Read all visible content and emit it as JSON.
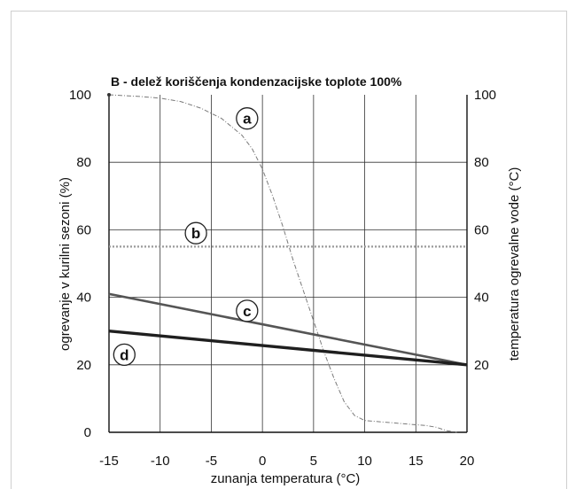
{
  "chart_data": {
    "type": "line",
    "title": "B - delež koriščenja kondenzacijske toplote 100%",
    "xlabel": "zunanja temperatura (°C)",
    "ylabel": "ogrevanje  v kurilni sezoni (%)",
    "y2label": "temperatura ogrevalne vode (°C)",
    "xlim": [
      -15,
      20
    ],
    "ylim": [
      0,
      100
    ],
    "y2lim": [
      0,
      100
    ],
    "x_ticks": [
      "-15",
      "-10",
      "-5",
      "0",
      "5",
      "10",
      "15",
      "20"
    ],
    "y_ticks": [
      "0",
      "20",
      "40",
      "60",
      "80",
      "100"
    ],
    "y2_ticks": [
      "20",
      "40",
      "60",
      "80",
      "100"
    ],
    "grid": true,
    "series": [
      {
        "name": "a",
        "axis": "left",
        "style": "dash-dot thin",
        "color": "#777777",
        "x": [
          -15,
          -12,
          -10,
          -8,
          -6,
          -4,
          -2,
          -1,
          0,
          1,
          2,
          3,
          4,
          5,
          6,
          7,
          8,
          9,
          10,
          12,
          14,
          16,
          17,
          18,
          19
        ],
        "y": [
          100,
          99.5,
          99,
          98,
          96,
          93,
          88,
          84,
          78,
          70,
          61,
          51,
          42,
          33,
          24,
          16,
          9,
          5,
          3.5,
          3,
          2.5,
          2,
          1.5,
          0.5,
          0
        ]
      },
      {
        "name": "b",
        "axis": "right",
        "style": "dotted",
        "color": "#9a9a9a",
        "x": [
          -15,
          20
        ],
        "y": [
          55,
          55
        ]
      },
      {
        "name": "c",
        "axis": "right",
        "style": "solid medium",
        "color": "#555555",
        "x": [
          -15,
          20
        ],
        "y": [
          41,
          20
        ]
      },
      {
        "name": "d",
        "axis": "right",
        "style": "solid thick",
        "color": "#222222",
        "x": [
          -15,
          20
        ],
        "y": [
          30,
          20
        ]
      }
    ],
    "labels": [
      {
        "text": "a",
        "x": -1.5,
        "y": 93
      },
      {
        "text": "b",
        "x": -6.5,
        "y": 59
      },
      {
        "text": "c",
        "x": -1.5,
        "y": 36
      },
      {
        "text": "d",
        "x": -13.5,
        "y": 23
      }
    ]
  }
}
